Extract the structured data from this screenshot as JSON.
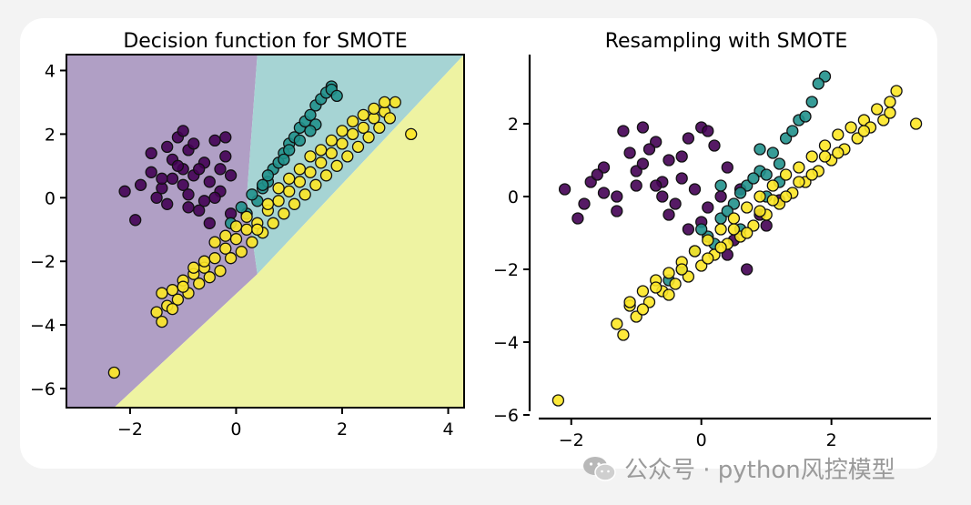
{
  "chart_data": [
    {
      "type": "scatter",
      "title": "Decision function for SMOTE",
      "xlim": [
        -3.2,
        4.3
      ],
      "ylim": [
        -6.6,
        4.5
      ],
      "x_ticks": [
        -2,
        0,
        2,
        4
      ],
      "y_ticks": [
        -6,
        -4,
        -2,
        0,
        2,
        4
      ],
      "x_tick_labels": [
        "−2",
        "0",
        "2",
        "4"
      ],
      "y_tick_labels": [
        "−6",
        "−4",
        "−2",
        "0",
        "2",
        "4"
      ],
      "grid": false,
      "decision_regions": [
        {
          "class": 0,
          "color": "#b09fc5",
          "polygon": [
            [
              -3.2,
              -6.6
            ],
            [
              -2.3,
              -6.6
            ],
            [
              0.4,
              -2.4
            ],
            [
              0.2,
              0.0
            ],
            [
              0.4,
              4.5
            ],
            [
              -3.2,
              4.5
            ]
          ]
        },
        {
          "class": 1,
          "color": "#a6d4d4",
          "polygon": [
            [
              0.4,
              -2.4
            ],
            [
              4.3,
              4.5
            ],
            [
              0.4,
              4.5
            ],
            [
              0.2,
              0.0
            ]
          ]
        },
        {
          "class": 2,
          "color": "#eef3a2",
          "polygon": [
            [
              -2.3,
              -6.6
            ],
            [
              4.3,
              -6.6
            ],
            [
              4.3,
              4.5
            ],
            [
              0.4,
              -2.4
            ]
          ]
        }
      ],
      "series": [
        {
          "color": "#440154",
          "x": [
            -2.1,
            -1.9,
            -1.8,
            -1.6,
            -1.5,
            -1.4,
            -1.3,
            -1.2,
            -1.2,
            -1.1,
            -1.0,
            -1.0,
            -1.0,
            -0.9,
            -0.9,
            -0.8,
            -0.8,
            -0.7,
            -0.6,
            -0.5,
            -0.5,
            -0.4,
            -0.3,
            -0.3,
            -0.2,
            -0.1,
            -0.1,
            -0.6,
            -1.3,
            -0.7,
            -1.6,
            -0.2,
            -0.9,
            -1.4,
            -0.4,
            -1.1
          ],
          "y": [
            0.2,
            -0.7,
            0.4,
            0.8,
            0.0,
            0.3,
            -0.2,
            1.2,
            0.6,
            1.9,
            2.1,
            0.9,
            0.4,
            1.5,
            0.1,
            1.7,
            0.7,
            -0.4,
            1.1,
            0.5,
            -0.8,
            1.8,
            0.9,
            0.2,
            1.3,
            0.7,
            -0.5,
            -0.1,
            1.6,
            0.9,
            1.4,
            1.9,
            -0.3,
            0.6,
            0.0,
            1.0
          ]
        },
        {
          "color": "#21918c",
          "x": [
            -0.1,
            0.2,
            0.4,
            0.5,
            0.6,
            0.7,
            0.8,
            0.9,
            1.0,
            1.1,
            1.2,
            1.3,
            1.4,
            1.5,
            1.6,
            1.7,
            1.8,
            0.3,
            0.6,
            0.9,
            1.2,
            1.5,
            1.8,
            0.1,
            0.5,
            1.0,
            1.4,
            1.9
          ],
          "y": [
            -0.8,
            -0.5,
            -0.1,
            0.3,
            0.5,
            0.9,
            1.1,
            1.4,
            1.7,
            1.9,
            2.2,
            2.4,
            2.6,
            2.9,
            3.1,
            3.3,
            3.5,
            0.1,
            0.7,
            1.2,
            1.8,
            2.3,
            3.4,
            -0.3,
            0.4,
            1.5,
            2.1,
            3.2
          ]
        },
        {
          "color": "#fde725",
          "x": [
            -2.3,
            -1.5,
            -1.4,
            -1.3,
            -1.2,
            -1.1,
            -1.0,
            -0.9,
            -0.8,
            -0.7,
            -0.6,
            -0.5,
            -0.4,
            -0.3,
            -0.2,
            -0.1,
            0.0,
            0.1,
            0.2,
            0.3,
            0.4,
            0.5,
            0.6,
            0.7,
            0.8,
            0.9,
            1.0,
            1.1,
            1.2,
            1.3,
            1.4,
            1.5,
            1.6,
            1.7,
            1.8,
            1.9,
            2.0,
            2.1,
            2.2,
            2.3,
            2.4,
            2.5,
            2.6,
            2.7,
            2.8,
            2.9,
            3.0,
            3.3,
            -1.4,
            -1.0,
            -0.6,
            -0.2,
            0.2,
            0.6,
            1.0,
            1.4,
            1.8,
            2.2,
            2.6,
            -1.2,
            -0.8,
            -0.4,
            0.0,
            0.4,
            0.8,
            1.2,
            1.6,
            2.0,
            2.4,
            2.8
          ],
          "y": [
            -5.5,
            -3.6,
            -3.9,
            -3.4,
            -2.9,
            -3.2,
            -2.6,
            -3.0,
            -2.4,
            -2.7,
            -2.2,
            -2.5,
            -1.9,
            -2.3,
            -1.6,
            -1.9,
            -1.3,
            -1.7,
            -1.0,
            -1.4,
            -0.8,
            -1.1,
            -0.4,
            -0.8,
            -0.1,
            -0.5,
            0.2,
            -0.2,
            0.5,
            0.1,
            0.8,
            0.4,
            1.1,
            0.7,
            1.4,
            1.0,
            1.7,
            1.3,
            2.0,
            1.6,
            2.2,
            1.9,
            2.5,
            2.2,
            2.7,
            2.5,
            3.0,
            2.0,
            -3.0,
            -2.8,
            -2.0,
            -1.2,
            -0.6,
            -0.2,
            0.6,
            1.3,
            1.8,
            2.4,
            2.8,
            -3.5,
            -2.2,
            -1.4,
            -0.9,
            -1.0,
            0.3,
            0.9,
            1.5,
            2.1,
            2.6,
            3.0
          ]
        }
      ]
    },
    {
      "type": "scatter",
      "title": "Resampling with SMOTE",
      "xlim": [
        -2.5,
        3.6
      ],
      "ylim": [
        -6.1,
        3.9
      ],
      "x_ticks": [
        -2,
        0,
        2
      ],
      "y_ticks": [
        -6,
        -4,
        -2,
        0,
        2
      ],
      "x_tick_labels": [
        "−2",
        "0",
        "2"
      ],
      "y_tick_labels": [
        "−6",
        "−4",
        "−2",
        "0",
        "2"
      ],
      "grid": false,
      "series": [
        {
          "color": "#440154",
          "x": [
            -2.1,
            -1.9,
            -1.7,
            -1.5,
            -1.3,
            -1.1,
            -0.9,
            -0.7,
            -0.5,
            -0.3,
            -0.1,
            0.1,
            0.3,
            -1.0,
            -0.8,
            -0.6,
            -0.4,
            -0.2,
            0.0,
            0.2,
            0.4,
            -1.3,
            -1.5,
            -1.0,
            -0.5,
            0.0,
            0.5,
            -1.8,
            -1.6,
            -1.2,
            -0.9,
            -0.6,
            -0.3,
            0.1,
            0.6,
            0.9,
            1.2,
            0.4,
            0.7,
            1.0,
            -0.7,
            -0.2
          ],
          "y": [
            0.2,
            -0.6,
            0.4,
            0.8,
            0.0,
            1.2,
            1.9,
            1.5,
            1.0,
            0.5,
            0.2,
            -0.3,
            0.0,
            0.7,
            1.3,
            0.4,
            -0.2,
            1.6,
            1.9,
            1.4,
            0.8,
            -0.4,
            0.1,
            0.3,
            -0.5,
            -0.7,
            -1.2,
            -0.2,
            0.6,
            1.8,
            0.9,
            0.0,
            1.1,
            1.8,
            0.2,
            -0.5,
            -0.1,
            -1.6,
            -2.0,
            -0.8,
            0.3,
            -0.9
          ]
        },
        {
          "color": "#21918c",
          "x": [
            -0.5,
            -0.3,
            -0.1,
            0.1,
            0.3,
            0.5,
            0.7,
            0.9,
            1.1,
            1.3,
            1.5,
            1.7,
            1.9,
            0.0,
            0.4,
            0.8,
            1.2,
            1.6,
            0.2,
            0.6,
            1.0,
            1.4,
            1.8,
            1.0,
            0.6,
            0.3,
            1.2,
            0.9
          ],
          "y": [
            -2.3,
            -2.0,
            -1.5,
            -1.1,
            -0.6,
            -0.2,
            0.3,
            0.7,
            1.2,
            1.6,
            2.1,
            2.6,
            3.3,
            -0.9,
            -0.4,
            0.5,
            0.9,
            2.2,
            -1.3,
            0.1,
            0.6,
            1.8,
            3.1,
            0.0,
            -0.9,
            0.3,
            0.4,
            1.3
          ]
        },
        {
          "color": "#fde725",
          "x": [
            -2.2,
            -1.3,
            -1.2,
            -1.1,
            -1.0,
            -0.9,
            -0.8,
            -0.7,
            -0.6,
            -0.5,
            -0.4,
            -0.3,
            -0.2,
            -0.1,
            0.0,
            0.1,
            0.2,
            0.3,
            0.4,
            0.5,
            0.6,
            0.7,
            0.8,
            0.9,
            1.0,
            1.1,
            1.2,
            1.3,
            1.4,
            1.5,
            1.6,
            1.7,
            1.8,
            1.9,
            2.0,
            2.1,
            2.2,
            2.3,
            2.4,
            2.5,
            2.6,
            2.7,
            2.8,
            2.9,
            3.0,
            3.3,
            -1.1,
            -0.7,
            -0.3,
            0.1,
            0.5,
            0.9,
            1.3,
            1.7,
            2.1,
            2.5,
            2.9,
            -0.9,
            -0.5,
            0.3,
            0.7,
            1.1,
            1.5,
            1.9
          ],
          "y": [
            -5.6,
            -3.5,
            -3.8,
            -3.0,
            -3.3,
            -2.6,
            -2.9,
            -2.3,
            -2.6,
            -2.1,
            -2.4,
            -1.8,
            -2.2,
            -1.5,
            -1.9,
            -1.2,
            -1.6,
            -0.9,
            -1.3,
            -0.6,
            -1.1,
            -0.3,
            -0.8,
            0.0,
            -0.5,
            0.3,
            -0.2,
            0.6,
            0.1,
            0.8,
            0.4,
            1.1,
            0.7,
            1.4,
            1.0,
            1.7,
            1.3,
            1.9,
            1.6,
            2.1,
            1.9,
            2.4,
            2.1,
            2.6,
            2.9,
            2.0,
            -2.9,
            -2.5,
            -2.0,
            -1.7,
            -0.9,
            -0.4,
            0.0,
            0.6,
            1.2,
            1.8,
            2.3,
            -3.1,
            -2.7,
            -1.4,
            -1.0,
            -0.1,
            0.4,
            1.1
          ]
        }
      ]
    }
  ],
  "watermark": {
    "text": "公众号 · python风控模型",
    "icon": "wechat-icon"
  }
}
